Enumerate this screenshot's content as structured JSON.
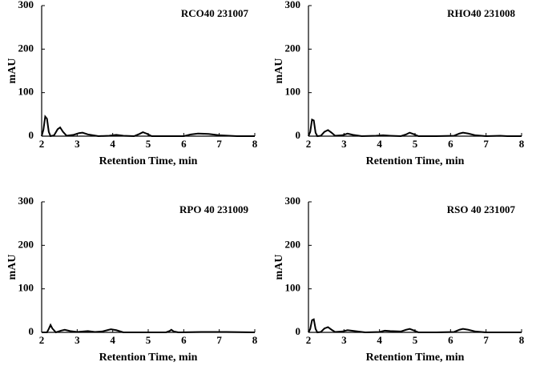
{
  "chart_data": [
    {
      "type": "line",
      "title": "RCO40 231007",
      "xlabel": "Retention Time, min",
      "ylabel": "mAU",
      "color": "#000000",
      "x": [
        2.0,
        2.05,
        2.1,
        2.15,
        2.2,
        2.25,
        2.35,
        2.45,
        2.52,
        2.6,
        2.7,
        2.9,
        3.05,
        3.15,
        3.3,
        3.6,
        3.9,
        4.1,
        4.3,
        4.6,
        4.75,
        4.85,
        4.95,
        5.1,
        5.5,
        6.0,
        6.2,
        6.4,
        6.7,
        7.0,
        7.5,
        8.0
      ],
      "values": [
        0,
        15,
        45,
        40,
        10,
        0,
        2,
        16,
        20,
        10,
        1,
        3,
        7,
        8,
        4,
        0,
        1,
        3,
        1,
        0,
        5,
        9,
        6,
        0,
        0,
        0,
        4,
        6,
        5,
        2,
        0,
        0
      ],
      "xlim": [
        2,
        8
      ],
      "ylim": [
        0,
        300
      ],
      "xticks": [
        2,
        3,
        4,
        5,
        6,
        7,
        8
      ],
      "yticks": [
        0,
        100,
        200,
        300
      ]
    },
    {
      "type": "line",
      "title": "RHO40 231008",
      "xlabel": "Retention Time, min",
      "ylabel": "mAU",
      "color": "#000000",
      "x": [
        2.0,
        2.05,
        2.1,
        2.15,
        2.2,
        2.25,
        2.35,
        2.45,
        2.55,
        2.65,
        2.75,
        2.95,
        3.1,
        3.25,
        3.5,
        3.9,
        4.1,
        4.3,
        4.6,
        4.75,
        4.85,
        4.95,
        5.1,
        5.6,
        6.1,
        6.25,
        6.35,
        6.5,
        6.7,
        7.0,
        7.4,
        7.6,
        8.0
      ],
      "values": [
        0,
        10,
        38,
        36,
        8,
        0,
        1,
        10,
        14,
        8,
        1,
        2,
        6,
        3,
        0,
        1,
        2,
        1,
        0,
        4,
        8,
        5,
        0,
        0,
        1,
        6,
        8,
        6,
        2,
        0,
        1,
        0,
        0
      ],
      "xlim": [
        2,
        8
      ],
      "ylim": [
        0,
        300
      ],
      "xticks": [
        2,
        3,
        4,
        5,
        6,
        7,
        8
      ],
      "yticks": [
        0,
        100,
        200,
        300
      ]
    },
    {
      "type": "line",
      "title": "RPO 40 231009",
      "xlabel": "Retention Time, min",
      "ylabel": "mAU",
      "color": "#000000",
      "x": [
        2.0,
        2.15,
        2.2,
        2.25,
        2.3,
        2.4,
        2.55,
        2.65,
        2.8,
        3.0,
        3.3,
        3.5,
        3.7,
        3.85,
        3.95,
        4.1,
        4.3,
        4.8,
        5.5,
        5.6,
        5.65,
        5.72,
        5.85,
        6.5,
        7.2,
        8.0
      ],
      "values": [
        0,
        0,
        8,
        17,
        9,
        0,
        4,
        6,
        3,
        1,
        3,
        1,
        2,
        5,
        7,
        5,
        0,
        0,
        0,
        3,
        6,
        2,
        0,
        1,
        1,
        0
      ],
      "xlim": [
        2,
        8
      ],
      "ylim": [
        0,
        300
      ],
      "xticks": [
        2,
        3,
        4,
        5,
        6,
        7,
        8
      ],
      "yticks": [
        0,
        100,
        200,
        300
      ]
    },
    {
      "type": "line",
      "title": "RSO 40 231007",
      "xlabel": "Retention Time, min",
      "ylabel": "mAU",
      "color": "#000000",
      "x": [
        2.0,
        2.05,
        2.1,
        2.15,
        2.2,
        2.25,
        2.35,
        2.45,
        2.55,
        2.65,
        2.75,
        2.95,
        3.1,
        3.3,
        3.6,
        4.0,
        4.15,
        4.3,
        4.6,
        4.75,
        4.85,
        4.95,
        5.1,
        5.6,
        6.1,
        6.25,
        6.35,
        6.5,
        6.7,
        7.0,
        8.0
      ],
      "values": [
        0,
        8,
        28,
        30,
        8,
        0,
        1,
        9,
        12,
        6,
        1,
        2,
        5,
        3,
        0,
        1,
        4,
        3,
        2,
        6,
        8,
        5,
        0,
        0,
        1,
        6,
        8,
        6,
        2,
        0,
        0
      ],
      "xlim": [
        2,
        8
      ],
      "ylim": [
        0,
        300
      ],
      "xticks": [
        2,
        3,
        4,
        5,
        6,
        7,
        8
      ],
      "yticks": [
        0,
        100,
        200,
        300
      ]
    }
  ]
}
